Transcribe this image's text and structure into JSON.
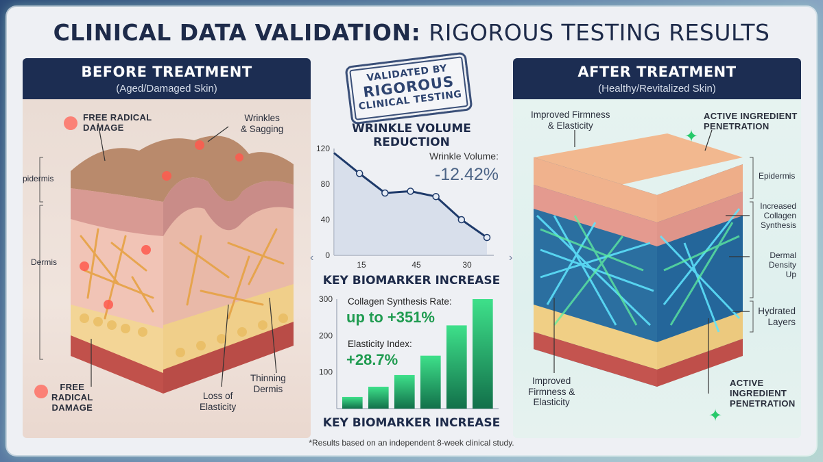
{
  "title": {
    "bold": "CLINICAL DATA VALIDATION:",
    "light": "RIGOROUS TESTING RESULTS"
  },
  "before": {
    "heading": "BEFORE TREATMENT",
    "subheading": "(Aged/Damaged Skin)",
    "labels": {
      "free_radical_top": [
        "FREE RADICAL",
        "DAMAGE"
      ],
      "wrinkles": [
        "Wrinkles",
        "& Sagging"
      ],
      "epidermis": "Epidermis",
      "dermis": "Dermis",
      "free_radical_bottom": [
        "FREE",
        "RADICAL",
        "DAMAGE"
      ],
      "loss_elasticity": [
        "Loss of",
        "Elasticity"
      ],
      "thinning": [
        "Thinning",
        "Dermis"
      ]
    }
  },
  "after": {
    "heading": "AFTER TREATMENT",
    "subheading": "(Healthy/Revitalized Skin)",
    "labels": {
      "firmness_top": [
        "Improved Firmness",
        "& Elasticity"
      ],
      "active_top": [
        "ACTIVE INGREDIENT",
        "PENETRATION"
      ],
      "epidermis": "Epidermis",
      "collagen": [
        "Increased",
        "Collagen",
        "Synthesis"
      ],
      "density": [
        "Dermal",
        "Density",
        "Up"
      ],
      "hydrated": [
        "Hydrated",
        "Layers"
      ],
      "firmness_bottom": [
        "Improved",
        "Firmness &",
        "Elasticity"
      ],
      "active_bottom": [
        "ACTIVE",
        "INGREDIENT",
        "PENETRATION"
      ]
    }
  },
  "stamp": {
    "l1": "VALIDATED BY",
    "l2": "RIGOROUS",
    "l3": "CLINICAL TESTING"
  },
  "chart_data": [
    {
      "type": "line",
      "title": "WRINKLE VOLUME REDUCTION",
      "x_tick_labels": [
        "15",
        "45",
        "30"
      ],
      "y_ticks": [
        0,
        40,
        80,
        120
      ],
      "ylim": [
        0,
        120
      ],
      "values": [
        115,
        92,
        70,
        72,
        66,
        40,
        20
      ],
      "annotation_label": "Wrinkle Volume:",
      "annotation_value": "-12.42%"
    },
    {
      "type": "bar",
      "title": "KEY BIOMARKER INCREASE",
      "xlabel": "KEY BIOMARKER INCREASE",
      "y_ticks": [
        100,
        200,
        300
      ],
      "ylim": [
        0,
        300
      ],
      "values": [
        32,
        60,
        92,
        145,
        228,
        300
      ],
      "annotations": [
        {
          "label": "Collagen Synthesis Rate:",
          "value": "up to +351%"
        },
        {
          "label": "Elasticity Index:",
          "value": "+28.7%"
        }
      ]
    }
  ],
  "footnote": "*Results based on an independent 8-week clinical study.",
  "colors": {
    "navy": "#1c2d52",
    "green": "#1f9b50",
    "red": "#e2493f"
  }
}
